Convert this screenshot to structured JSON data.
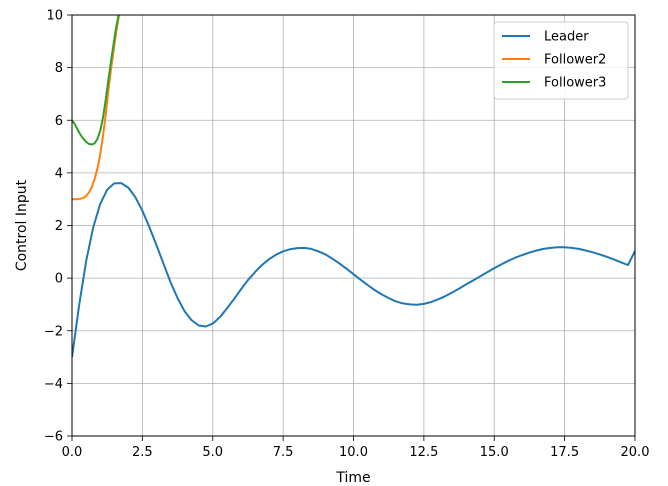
{
  "chart_data": {
    "type": "line",
    "title": "",
    "xlabel": "Time",
    "ylabel": "Control Input",
    "xlim": [
      0,
      20
    ],
    "ylim": [
      -6,
      10
    ],
    "x_ticks": [
      "0.0",
      "2.5",
      "5.0",
      "7.5",
      "10.0",
      "12.5",
      "15.0",
      "17.5",
      "20.0"
    ],
    "y_ticks": [
      "−6",
      "−4",
      "−2",
      "0",
      "2",
      "4",
      "6",
      "8",
      "10"
    ],
    "grid": true,
    "legend_position": "top-right",
    "series": [
      {
        "name": "Leader",
        "color": "#1f77b4",
        "x": [
          0,
          0.25,
          0.5,
          0.75,
          1.0,
          1.25,
          1.5,
          1.75,
          2.0,
          2.25,
          2.5,
          2.75,
          3.0,
          3.25,
          3.5,
          3.75,
          4.0,
          4.25,
          4.5,
          4.75,
          5.0,
          5.25,
          5.5,
          5.75,
          6.0,
          6.25,
          6.5,
          6.75,
          7.0,
          7.25,
          7.5,
          7.75,
          8.0,
          8.25,
          8.5,
          8.75,
          9.0,
          9.25,
          9.5,
          9.75,
          10.0,
          10.25,
          10.5,
          10.75,
          11.0,
          11.25,
          11.5,
          11.75,
          12.0,
          12.25,
          12.5,
          12.75,
          13.0,
          13.25,
          13.5,
          13.75,
          14.0,
          14.25,
          14.5,
          14.75,
          15.0,
          15.25,
          15.5,
          15.75,
          16.0,
          16.25,
          16.5,
          16.75,
          17.0,
          17.25,
          17.5,
          17.75,
          18.0,
          18.25,
          18.5,
          18.75,
          19.0,
          19.25,
          19.5,
          19.75,
          20.0
        ],
        "y": [
          -3.0,
          -1.07,
          0.64,
          1.91,
          2.82,
          3.36,
          3.6,
          3.61,
          3.44,
          3.08,
          2.56,
          1.94,
          1.26,
          0.55,
          -0.15,
          -0.76,
          -1.26,
          -1.6,
          -1.8,
          -1.84,
          -1.73,
          -1.49,
          -1.16,
          -0.8,
          -0.43,
          -0.08,
          0.23,
          0.5,
          0.72,
          0.89,
          1.02,
          1.1,
          1.14,
          1.15,
          1.11,
          1.02,
          0.9,
          0.74,
          0.56,
          0.36,
          0.15,
          -0.06,
          -0.26,
          -0.45,
          -0.62,
          -0.76,
          -0.88,
          -0.96,
          -1.0,
          -1.01,
          -0.98,
          -0.91,
          -0.81,
          -0.69,
          -0.55,
          -0.4,
          -0.24,
          -0.09,
          0.07,
          0.22,
          0.38,
          0.52,
          0.66,
          0.78,
          0.88,
          0.97,
          1.05,
          1.11,
          1.15,
          1.17,
          1.17,
          1.15,
          1.11,
          1.05,
          0.98,
          0.9,
          0.81,
          0.71,
          0.6,
          0.5,
          1.03
        ]
      },
      {
        "name": "Follower2",
        "color": "#ff7f0e",
        "x": [
          0,
          0.1,
          0.2,
          0.3,
          0.4,
          0.5,
          0.6,
          0.7,
          0.8,
          0.9,
          1.0,
          1.1,
          1.2,
          1.3,
          1.4,
          1.5,
          1.55,
          1.6,
          1.65,
          1.7
        ],
        "y": [
          3.0,
          3.0,
          3.0,
          3.02,
          3.05,
          3.12,
          3.25,
          3.45,
          3.75,
          4.15,
          4.7,
          5.4,
          6.25,
          7.2,
          8.05,
          8.8,
          9.2,
          9.55,
          9.85,
          10.2
        ]
      },
      {
        "name": "Follower3",
        "color": "#2ca02c",
        "x": [
          0,
          0.1,
          0.2,
          0.3,
          0.4,
          0.5,
          0.6,
          0.7,
          0.8,
          0.9,
          1.0,
          1.1,
          1.2,
          1.3,
          1.4,
          1.5,
          1.55,
          1.6,
          1.65,
          1.7
        ],
        "y": [
          6.0,
          5.85,
          5.65,
          5.45,
          5.3,
          5.18,
          5.1,
          5.08,
          5.12,
          5.28,
          5.6,
          6.1,
          6.8,
          7.6,
          8.35,
          9.05,
          9.4,
          9.7,
          9.95,
          10.2
        ]
      }
    ]
  }
}
